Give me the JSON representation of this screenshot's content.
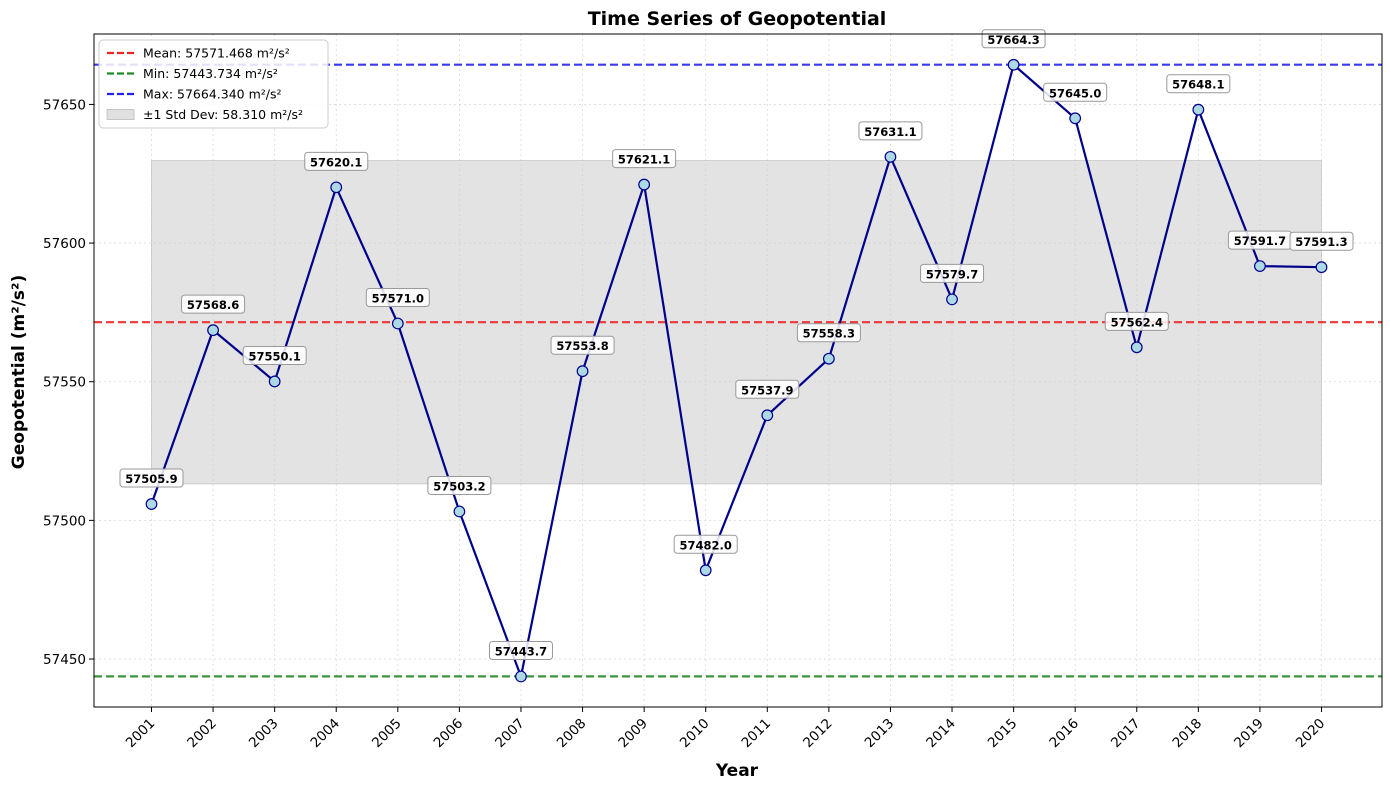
{
  "chart_data": {
    "type": "line",
    "title": "Time Series of Geopotential",
    "xlabel": "Year",
    "ylabel": "Geopotential (m²/s²)",
    "categories": [
      "2001",
      "2002",
      "2003",
      "2004",
      "2005",
      "2006",
      "2007",
      "2008",
      "2009",
      "2010",
      "2011",
      "2012",
      "2013",
      "2014",
      "2015",
      "2016",
      "2017",
      "2018",
      "2019",
      "2020"
    ],
    "values": [
      57505.9,
      57568.6,
      57550.1,
      57620.1,
      57571.0,
      57503.2,
      57443.7,
      57553.8,
      57621.1,
      57482.0,
      57537.9,
      57558.3,
      57631.1,
      57579.7,
      57664.3,
      57645.0,
      57562.4,
      57648.1,
      57591.7,
      57591.3
    ],
    "data_labels": [
      "57505.9",
      "57568.6",
      "57550.1",
      "57620.1",
      "57571.0",
      "57503.2",
      "57443.7",
      "57553.8",
      "57621.1",
      "57482.0",
      "57537.9",
      "57558.3",
      "57631.1",
      "57579.7",
      "57664.3",
      "57645.0",
      "57562.4",
      "57648.1",
      "57591.7",
      "57591.3"
    ],
    "ylim": [
      57432.7,
      57675.4
    ],
    "yticks": [
      57450,
      57500,
      57550,
      57600,
      57650
    ],
    "ytick_labels": [
      "57450",
      "57500",
      "57550",
      "57600",
      "57650"
    ],
    "grid": true,
    "legend_position": "top-left",
    "reference_lines": {
      "mean": {
        "value": 57571.468,
        "color": "#ee2222"
      },
      "min": {
        "value": 57443.734,
        "color": "#228b22"
      },
      "max": {
        "value": 57664.34,
        "color": "#2222ee"
      }
    },
    "std_band": {
      "lower": 57513.158,
      "upper": 57629.778,
      "color": "#cccccc"
    },
    "line_color": "#00008b",
    "marker_fill": "#add8e6",
    "legend": [
      {
        "key": "mean",
        "label": "Mean: 57571.468 m²/s²",
        "kind": "dash",
        "color": "#ee2222"
      },
      {
        "key": "min",
        "label": "Min: 57443.734 m²/s²",
        "kind": "dash",
        "color": "#228b22"
      },
      {
        "key": "max",
        "label": "Max: 57664.340 m²/s²",
        "kind": "dash",
        "color": "#2222ee"
      },
      {
        "key": "std",
        "label": "±1 Std Dev: 58.310 m²/s²",
        "kind": "patch",
        "color": "#cccccc"
      }
    ]
  }
}
